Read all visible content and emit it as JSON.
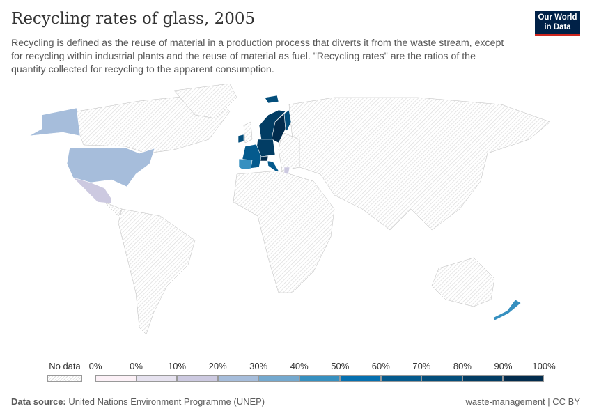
{
  "header": {
    "title": "Recycling rates of glass, 2005",
    "subtitle": "Recycling is defined as the reuse of material in a production process that diverts it from the waste stream, except for recycling within industrial plants and the reuse of material as fuel. \"Recycling rates\" are the ratios of the quantity collected for recycling to the apparent consumption.",
    "logo": "Our World in Data"
  },
  "legend": {
    "no_data_label": "No data",
    "tick_labels": [
      "0%",
      "0%",
      "10%",
      "20%",
      "30%",
      "40%",
      "50%",
      "60%",
      "70%",
      "80%",
      "90%",
      "100%"
    ],
    "colors": [
      "#fcf1f7",
      "#e6e2ef",
      "#ccc9e0",
      "#a6bddb",
      "#74a9cf",
      "#3690c0",
      "#0570b0",
      "#045a8d",
      "#034e7b",
      "#023d64",
      "#022c4d"
    ],
    "no_data_color": "#e8e8e8"
  },
  "map": {
    "regions": [
      {
        "name": "United States",
        "value_range": "20-30%"
      },
      {
        "name": "Mexico",
        "value_range": "10-20%"
      },
      {
        "name": "Iceland",
        "value_range": "70-80%"
      },
      {
        "name": "Norway",
        "value_range": "80-90%"
      },
      {
        "name": "Sweden",
        "value_range": "90-100%"
      },
      {
        "name": "Finland",
        "value_range": "70-80%"
      },
      {
        "name": "Ireland",
        "value_range": "70-80%"
      },
      {
        "name": "Germany",
        "value_range": "80-90%"
      },
      {
        "name": "Switzerland",
        "value_range": "90-100%"
      },
      {
        "name": "France",
        "value_range": "50-60%"
      },
      {
        "name": "Spain",
        "value_range": "40-50%"
      },
      {
        "name": "Italy",
        "value_range": "50-60%"
      },
      {
        "name": "Greece",
        "value_range": "10-20%"
      },
      {
        "name": "New Zealand",
        "value_range": "40-50%"
      }
    ]
  },
  "footer": {
    "source_label": "Data source:",
    "source": "United Nations Environment Programme (UNEP)",
    "right": "waste-management | CC BY"
  }
}
